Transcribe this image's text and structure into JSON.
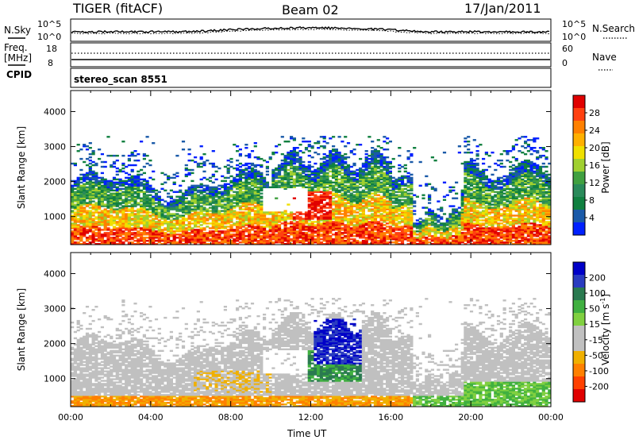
{
  "header": {
    "radar": "TIGER (fitACF)",
    "beam": "Beam 02",
    "date": "17/Jan/2011"
  },
  "summary_panel": {
    "nsky_label": "N.Sky",
    "nsearch_label": "N.Search",
    "nsky_ticks": [
      "10^5",
      "10^0"
    ],
    "nsearch_ticks": [
      "10^5",
      "10^0"
    ],
    "freq_label_line1": "Freq.",
    "freq_label_line2": "[MHz]",
    "freq_ticks": [
      "18",
      "8"
    ],
    "nave_label": "Nave",
    "nave_ticks": [
      "60",
      "0"
    ],
    "cpid_label": "CPID",
    "cpid_text": "stereo_scan 8551"
  },
  "chart_data": [
    {
      "type": "heatmap",
      "name": "power",
      "xlabel": "",
      "ylabel": "Slant Range [km]",
      "yticks": [
        1000,
        2000,
        3000,
        4000
      ],
      "ylim": [
        200,
        4600
      ],
      "xlim_hours": [
        0,
        24
      ],
      "colorbar_label": "Power [dB]",
      "colorbar_ticks": [
        "28",
        "24",
        "20",
        "16",
        "12",
        "8",
        "4"
      ],
      "colorbar_colors": [
        "#e00000",
        "#ff4010",
        "#ff8000",
        "#ffb000",
        "#f0e000",
        "#a0d030",
        "#40a040",
        "#2a8a5a",
        "#108040",
        "#1a5aa8",
        "#0020ff"
      ],
      "background": "#ffffff"
    },
    {
      "type": "heatmap",
      "name": "velocity",
      "xlabel": "Time UT",
      "ylabel": "Slant Range [km]",
      "yticks": [
        1000,
        2000,
        3000,
        4000
      ],
      "ylim": [
        200,
        4600
      ],
      "xlim_hours": [
        0,
        24
      ],
      "xticks": [
        "00:00",
        "04:00",
        "08:00",
        "12:00",
        "16:00",
        "20:00",
        "00:00"
      ],
      "colorbar_label": "Velocity [m s^-1]",
      "colorbar_ticks": [
        "200",
        "100",
        "50",
        "15",
        "-15",
        "-50",
        "-100",
        "-200"
      ],
      "colorbar_colors": [
        "#0000c8",
        "#2a3cc0",
        "#2a7a50",
        "#40b040",
        "#80d040",
        "#c0c0c0",
        "#c0c0c0",
        "#f0b000",
        "#ff8000",
        "#ff4000",
        "#e00000"
      ],
      "background": "#ffffff"
    }
  ]
}
